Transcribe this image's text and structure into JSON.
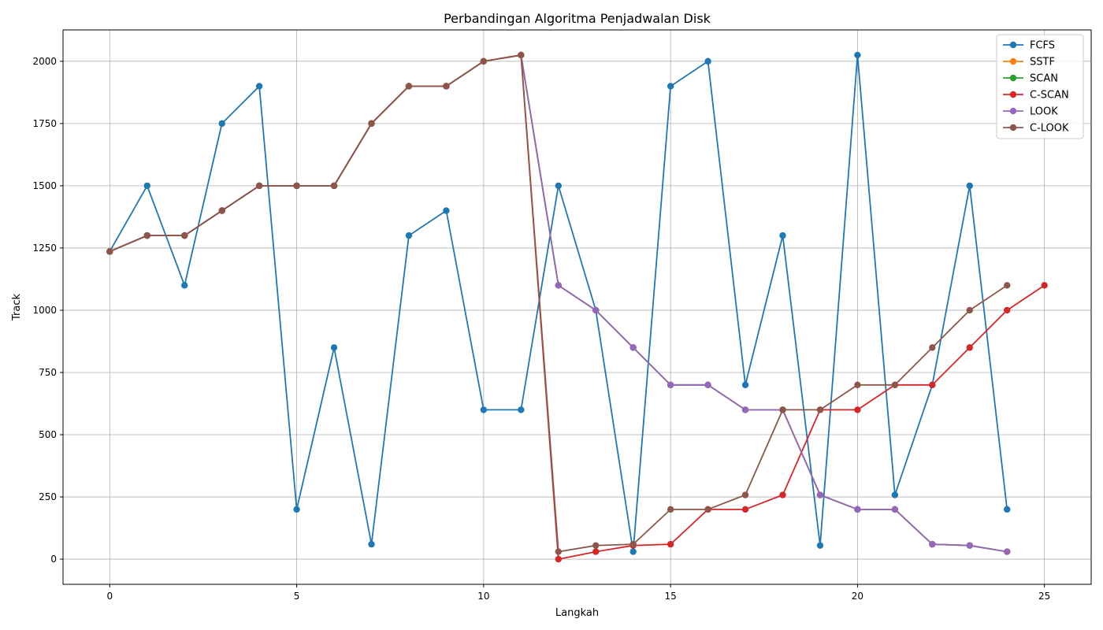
{
  "chart_data": {
    "type": "line",
    "title": "Perbandingan Algoritma Penjadwalan Disk",
    "xlabel": "Langkah",
    "ylabel": "Track",
    "xlim": [
      -1.25,
      26.25
    ],
    "ylim": [
      -101,
      2126
    ],
    "xticks": [
      0,
      5,
      10,
      15,
      20,
      25
    ],
    "yticks": [
      0,
      250,
      500,
      750,
      1000,
      1250,
      1500,
      1750,
      2000
    ],
    "grid": true,
    "legend_position": "top-right",
    "series": [
      {
        "name": "FCFS",
        "color": "#1f77b4",
        "values": [
          1236,
          1500,
          1100,
          1750,
          1900,
          200,
          850,
          60,
          1300,
          1400,
          600,
          600,
          1500,
          1000,
          30,
          1900,
          2000,
          700,
          1300,
          55,
          2025,
          258,
          700,
          1500,
          200
        ]
      },
      {
        "name": "SSTF",
        "color": "#ff7f0e",
        "values": [
          1236,
          1300,
          1300,
          1400,
          1500,
          1500,
          1500,
          1750,
          1900,
          1900,
          2000,
          2025,
          1100,
          1000,
          850,
          700,
          700,
          600,
          600,
          258,
          200,
          200,
          60,
          55,
          30
        ]
      },
      {
        "name": "SCAN",
        "color": "#2ca02c",
        "values": [
          1236,
          1300,
          1300,
          1400,
          1500,
          1500,
          1500,
          1750,
          1900,
          1900,
          2000,
          2025,
          1100,
          1000,
          850,
          700,
          700,
          600,
          600,
          258,
          200,
          200,
          60,
          55,
          30
        ]
      },
      {
        "name": "C-SCAN",
        "color": "#d62728",
        "values": [
          1236,
          1300,
          1300,
          1400,
          1500,
          1500,
          1500,
          1750,
          1900,
          1900,
          2000,
          2025,
          0,
          30,
          55,
          60,
          200,
          200,
          258,
          600,
          600,
          700,
          700,
          850,
          1000,
          1100
        ]
      },
      {
        "name": "LOOK",
        "color": "#9467bd",
        "values": [
          1236,
          1300,
          1300,
          1400,
          1500,
          1500,
          1500,
          1750,
          1900,
          1900,
          2000,
          2025,
          1100,
          1000,
          850,
          700,
          700,
          600,
          600,
          258,
          200,
          200,
          60,
          55,
          30
        ]
      },
      {
        "name": "C-LOOK",
        "color": "#8c564b",
        "values": [
          1236,
          1300,
          1300,
          1400,
          1500,
          1500,
          1500,
          1750,
          1900,
          1900,
          2000,
          2025,
          30,
          55,
          60,
          200,
          200,
          258,
          600,
          600,
          700,
          700,
          850,
          1000,
          1100
        ]
      }
    ]
  }
}
